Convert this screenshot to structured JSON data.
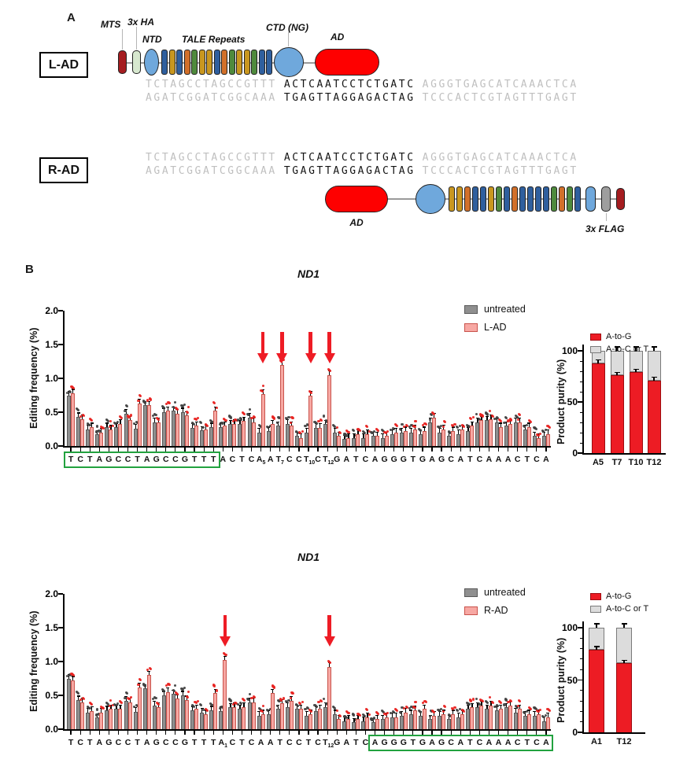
{
  "figure": {
    "panel_a_label": "A",
    "panel_b_label": "B"
  },
  "panel_a": {
    "lad": {
      "box_label": "L-AD",
      "mts_label": "MTS",
      "ha_label": "3x HA",
      "ntd_label": "NTD",
      "tale_label": "TALE Repeats",
      "ctd_label": "CTD (NG)",
      "ad_label": "AD",
      "tale_colors": [
        "#2F5F9E",
        "#C9971F",
        "#2F5F9E",
        "#D2702A",
        "#4F8A3D",
        "#C9971F",
        "#C9971F",
        "#2F5F9E",
        "#D2702A",
        "#4F8A3D",
        "#C9971F",
        "#C9971F",
        "#4F8A3D",
        "#2F5F9E",
        "#2F5F9E"
      ]
    },
    "rad": {
      "box_label": "R-AD",
      "ad_label": "AD",
      "flag_label": "3x FLAG",
      "tale_colors": [
        "#C9971F",
        "#C9971F",
        "#D2702A",
        "#2F5F9E",
        "#2F5F9E",
        "#C9971F",
        "#4F8A3D",
        "#2F5F9E",
        "#D2702A",
        "#2F5F9E",
        "#2F5F9E",
        "#2F5F9E",
        "#2F5F9E",
        "#4F8A3D",
        "#D2702A",
        "#4F8A3D",
        "#2F5F9E"
      ]
    },
    "colors": {
      "mts": "#A51D20",
      "ha": "#D7E8CF",
      "ntd": "#6FA8DC",
      "ctd": "#6FA8DC",
      "ad": "#FE0000",
      "flag": "#9E9E9E"
    },
    "sequences": {
      "top": [
        "TCTAGCCTAGCCGTTT",
        "ACTCAATCCTCTGATC",
        "AGGGTGAGCATCAAACTCA"
      ],
      "bottom": [
        "AGATCGGATCGGCAAA",
        "TGAGTTAGGAGACTAG",
        "TCCCACTCGTAGTTTGAGT"
      ]
    }
  },
  "chart_data": [
    {
      "type": "bar",
      "title": "ND1",
      "ylabel": "Editing frequency (%)",
      "ylim": [
        0,
        2.0
      ],
      "yticks": [
        "2.0",
        "1.5",
        "1.0",
        "0.5",
        "0.0"
      ],
      "grid": false,
      "legend_position": "top-right",
      "x_sequence": "TCTAGCCTAGCCGTTTACTCAATCCTCTGATCAGGGTGAGCATCAAACTCA",
      "x_subscripts": {
        "20": "5",
        "22": "7",
        "25": "10",
        "27": "12"
      },
      "highlight_box": {
        "start": 0,
        "end": 15,
        "color": "#22A23F"
      },
      "arrows": [
        20,
        22,
        25,
        27
      ],
      "series": [
        {
          "name": "untreated",
          "color": "#8F8F8F",
          "border": "#595959",
          "dot": "#3F3F3F",
          "values": [
            0.75,
            0.43,
            0.25,
            0.17,
            0.28,
            0.28,
            0.48,
            0.26,
            0.6,
            0.35,
            0.5,
            0.52,
            0.5,
            0.27,
            0.23,
            0.28,
            0.28,
            0.32,
            0.32,
            0.42,
            0.2,
            0.22,
            0.3,
            0.33,
            0.15,
            0.2,
            0.27,
            0.32,
            0.2,
            0.1,
            0.12,
            0.12,
            0.15,
            0.12,
            0.18,
            0.2,
            0.2,
            0.18,
            0.35,
            0.2,
            0.15,
            0.18,
            0.22,
            0.35,
            0.38,
            0.35,
            0.3,
            0.35,
            0.25,
            0.15,
            0.15
          ]
        },
        {
          "name": "L-AD",
          "color": "#F7A8A3",
          "border": "#C9534C",
          "dot": "#E8201D",
          "values": [
            0.78,
            0.4,
            0.28,
            0.2,
            0.25,
            0.33,
            0.38,
            0.63,
            0.6,
            0.35,
            0.52,
            0.48,
            0.45,
            0.3,
            0.25,
            0.52,
            0.3,
            0.33,
            0.37,
            0.35,
            0.77,
            0.32,
            1.2,
            0.3,
            0.12,
            0.75,
            0.27,
            1.05,
            0.15,
            0.12,
            0.18,
            0.18,
            0.15,
            0.15,
            0.2,
            0.22,
            0.25,
            0.22,
            0.42,
            0.25,
            0.22,
            0.25,
            0.3,
            0.38,
            0.4,
            0.28,
            0.32,
            0.35,
            0.28,
            0.12,
            0.18
          ]
        }
      ]
    },
    {
      "type": "stacked-bar",
      "ylabel": "Product purity (%)",
      "ylim": [
        0,
        110
      ],
      "yticks": [
        "100",
        "50",
        "0"
      ],
      "legend": [
        "A-to-G",
        "A-to-C or T"
      ],
      "categories": [
        "A5",
        "T7",
        "T10",
        "T12"
      ],
      "a_to_g": [
        88,
        76,
        79,
        71
      ],
      "total": [
        100,
        100,
        100,
        100
      ],
      "colors": {
        "a_to_g": "#ED1C24",
        "other": "#DCDCDC"
      }
    },
    {
      "type": "bar",
      "title": "ND1",
      "ylabel": "Editing frequency (%)",
      "ylim": [
        0,
        2.0
      ],
      "yticks": [
        "2.0",
        "1.5",
        "1.0",
        "0.5",
        "0.0"
      ],
      "grid": false,
      "legend_position": "top-right",
      "x_sequence": "TCTAGCCTAGCCGTTTACTCAATCCTCTGATCAGGGTGAGCATCAAACTCA",
      "x_subscripts": {
        "16": "1",
        "27": "12"
      },
      "highlight_box": {
        "start": 32,
        "end": 50,
        "color": "#22A23F"
      },
      "arrows": [
        16,
        27
      ],
      "series": [
        {
          "name": "untreated",
          "color": "#8F8F8F",
          "border": "#595959",
          "dot": "#3F3F3F",
          "values": [
            0.75,
            0.43,
            0.25,
            0.17,
            0.28,
            0.3,
            0.42,
            0.26,
            0.6,
            0.35,
            0.5,
            0.52,
            0.5,
            0.28,
            0.25,
            0.28,
            0.27,
            0.32,
            0.3,
            0.4,
            0.2,
            0.22,
            0.3,
            0.33,
            0.3,
            0.2,
            0.27,
            0.33,
            0.22,
            0.12,
            0.1,
            0.12,
            0.1,
            0.15,
            0.18,
            0.2,
            0.22,
            0.2,
            0.15,
            0.2,
            0.15,
            0.18,
            0.3,
            0.33,
            0.3,
            0.28,
            0.32,
            0.25,
            0.2,
            0.2,
            0.12
          ]
        },
        {
          "name": "R-AD",
          "color": "#F7A8A3",
          "border": "#C9534C",
          "dot": "#E8201D",
          "values": [
            0.72,
            0.4,
            0.27,
            0.25,
            0.3,
            0.3,
            0.4,
            0.62,
            0.8,
            0.33,
            0.55,
            0.45,
            0.43,
            0.3,
            0.22,
            0.53,
            1.02,
            0.33,
            0.33,
            0.4,
            0.22,
            0.53,
            0.38,
            0.42,
            0.3,
            0.22,
            0.3,
            0.92,
            0.15,
            0.15,
            0.15,
            0.18,
            0.15,
            0.18,
            0.18,
            0.25,
            0.28,
            0.3,
            0.2,
            0.22,
            0.22,
            0.22,
            0.32,
            0.35,
            0.35,
            0.3,
            0.35,
            0.3,
            0.22,
            0.22,
            0.18
          ]
        }
      ]
    },
    {
      "type": "stacked-bar",
      "ylabel": "Product purity (%)",
      "ylim": [
        0,
        110
      ],
      "yticks": [
        "100",
        "50",
        "0"
      ],
      "legend": [
        "A-to-G",
        "A-to-C or T"
      ],
      "categories": [
        "A1",
        "T12"
      ],
      "a_to_g": [
        79,
        66
      ],
      "total": [
        100,
        100
      ],
      "colors": {
        "a_to_g": "#ED1C24",
        "other": "#DCDCDC"
      }
    }
  ]
}
